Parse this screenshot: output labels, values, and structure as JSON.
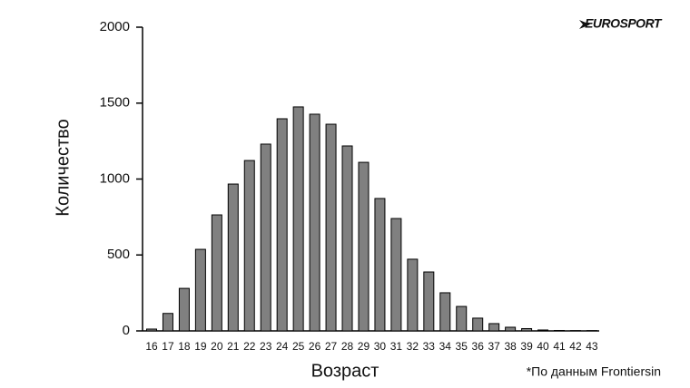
{
  "chart_data": {
    "type": "bar",
    "logo": "EUROSPORT",
    "x_label": "Возраст",
    "y_label": "Количество",
    "annotations": [
      "*По данным Frontiersin"
    ],
    "categories": [
      "16",
      "17",
      "18",
      "19",
      "20",
      "21",
      "22",
      "23",
      "24",
      "25",
      "26",
      "27",
      "28",
      "29",
      "30",
      "31",
      "32",
      "33",
      "34",
      "35",
      "36",
      "37",
      "38",
      "39",
      "40",
      "41",
      "42",
      "43"
    ],
    "values": [
      12,
      115,
      280,
      537,
      764,
      967,
      1122,
      1230,
      1397,
      1475,
      1427,
      1361,
      1218,
      1110,
      872,
      740,
      472,
      388,
      251,
      161,
      84,
      48,
      24,
      15,
      6,
      3,
      2,
      2
    ],
    "color": "#808080",
    "ylim": [
      0,
      2000
    ],
    "yticks": [
      0,
      500,
      1000,
      1500,
      2000
    ],
    "grid": false
  }
}
